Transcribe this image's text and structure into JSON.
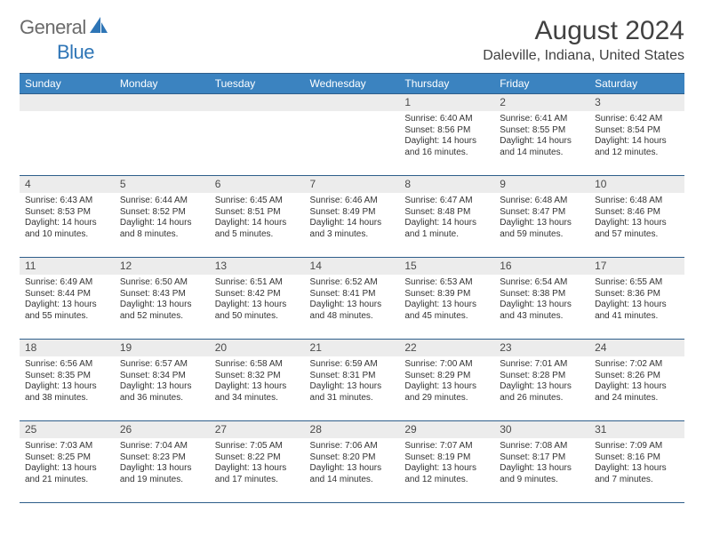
{
  "logo": {
    "text1": "General",
    "text2": "Blue"
  },
  "title": "August 2024",
  "location": "Daleville, Indiana, United States",
  "colors": {
    "header_bg": "#3b83c0",
    "border": "#2e5e8a",
    "daynum_bg": "#ececec",
    "logo_gray": "#6b6b6b",
    "logo_blue": "#2e75b6",
    "text": "#333333"
  },
  "weekdays": [
    "Sunday",
    "Monday",
    "Tuesday",
    "Wednesday",
    "Thursday",
    "Friday",
    "Saturday"
  ],
  "weeks": [
    [
      null,
      null,
      null,
      null,
      {
        "n": "1",
        "sr": "6:40 AM",
        "ss": "8:56 PM",
        "dl": "14 hours and 16 minutes."
      },
      {
        "n": "2",
        "sr": "6:41 AM",
        "ss": "8:55 PM",
        "dl": "14 hours and 14 minutes."
      },
      {
        "n": "3",
        "sr": "6:42 AM",
        "ss": "8:54 PM",
        "dl": "14 hours and 12 minutes."
      }
    ],
    [
      {
        "n": "4",
        "sr": "6:43 AM",
        "ss": "8:53 PM",
        "dl": "14 hours and 10 minutes."
      },
      {
        "n": "5",
        "sr": "6:44 AM",
        "ss": "8:52 PM",
        "dl": "14 hours and 8 minutes."
      },
      {
        "n": "6",
        "sr": "6:45 AM",
        "ss": "8:51 PM",
        "dl": "14 hours and 5 minutes."
      },
      {
        "n": "7",
        "sr": "6:46 AM",
        "ss": "8:49 PM",
        "dl": "14 hours and 3 minutes."
      },
      {
        "n": "8",
        "sr": "6:47 AM",
        "ss": "8:48 PM",
        "dl": "14 hours and 1 minute."
      },
      {
        "n": "9",
        "sr": "6:48 AM",
        "ss": "8:47 PM",
        "dl": "13 hours and 59 minutes."
      },
      {
        "n": "10",
        "sr": "6:48 AM",
        "ss": "8:46 PM",
        "dl": "13 hours and 57 minutes."
      }
    ],
    [
      {
        "n": "11",
        "sr": "6:49 AM",
        "ss": "8:44 PM",
        "dl": "13 hours and 55 minutes."
      },
      {
        "n": "12",
        "sr": "6:50 AM",
        "ss": "8:43 PM",
        "dl": "13 hours and 52 minutes."
      },
      {
        "n": "13",
        "sr": "6:51 AM",
        "ss": "8:42 PM",
        "dl": "13 hours and 50 minutes."
      },
      {
        "n": "14",
        "sr": "6:52 AM",
        "ss": "8:41 PM",
        "dl": "13 hours and 48 minutes."
      },
      {
        "n": "15",
        "sr": "6:53 AM",
        "ss": "8:39 PM",
        "dl": "13 hours and 45 minutes."
      },
      {
        "n": "16",
        "sr": "6:54 AM",
        "ss": "8:38 PM",
        "dl": "13 hours and 43 minutes."
      },
      {
        "n": "17",
        "sr": "6:55 AM",
        "ss": "8:36 PM",
        "dl": "13 hours and 41 minutes."
      }
    ],
    [
      {
        "n": "18",
        "sr": "6:56 AM",
        "ss": "8:35 PM",
        "dl": "13 hours and 38 minutes."
      },
      {
        "n": "19",
        "sr": "6:57 AM",
        "ss": "8:34 PM",
        "dl": "13 hours and 36 minutes."
      },
      {
        "n": "20",
        "sr": "6:58 AM",
        "ss": "8:32 PM",
        "dl": "13 hours and 34 minutes."
      },
      {
        "n": "21",
        "sr": "6:59 AM",
        "ss": "8:31 PM",
        "dl": "13 hours and 31 minutes."
      },
      {
        "n": "22",
        "sr": "7:00 AM",
        "ss": "8:29 PM",
        "dl": "13 hours and 29 minutes."
      },
      {
        "n": "23",
        "sr": "7:01 AM",
        "ss": "8:28 PM",
        "dl": "13 hours and 26 minutes."
      },
      {
        "n": "24",
        "sr": "7:02 AM",
        "ss": "8:26 PM",
        "dl": "13 hours and 24 minutes."
      }
    ],
    [
      {
        "n": "25",
        "sr": "7:03 AM",
        "ss": "8:25 PM",
        "dl": "13 hours and 21 minutes."
      },
      {
        "n": "26",
        "sr": "7:04 AM",
        "ss": "8:23 PM",
        "dl": "13 hours and 19 minutes."
      },
      {
        "n": "27",
        "sr": "7:05 AM",
        "ss": "8:22 PM",
        "dl": "13 hours and 17 minutes."
      },
      {
        "n": "28",
        "sr": "7:06 AM",
        "ss": "8:20 PM",
        "dl": "13 hours and 14 minutes."
      },
      {
        "n": "29",
        "sr": "7:07 AM",
        "ss": "8:19 PM",
        "dl": "13 hours and 12 minutes."
      },
      {
        "n": "30",
        "sr": "7:08 AM",
        "ss": "8:17 PM",
        "dl": "13 hours and 9 minutes."
      },
      {
        "n": "31",
        "sr": "7:09 AM",
        "ss": "8:16 PM",
        "dl": "13 hours and 7 minutes."
      }
    ]
  ],
  "labels": {
    "sunrise": "Sunrise: ",
    "sunset": "Sunset: ",
    "daylight": "Daylight: "
  }
}
